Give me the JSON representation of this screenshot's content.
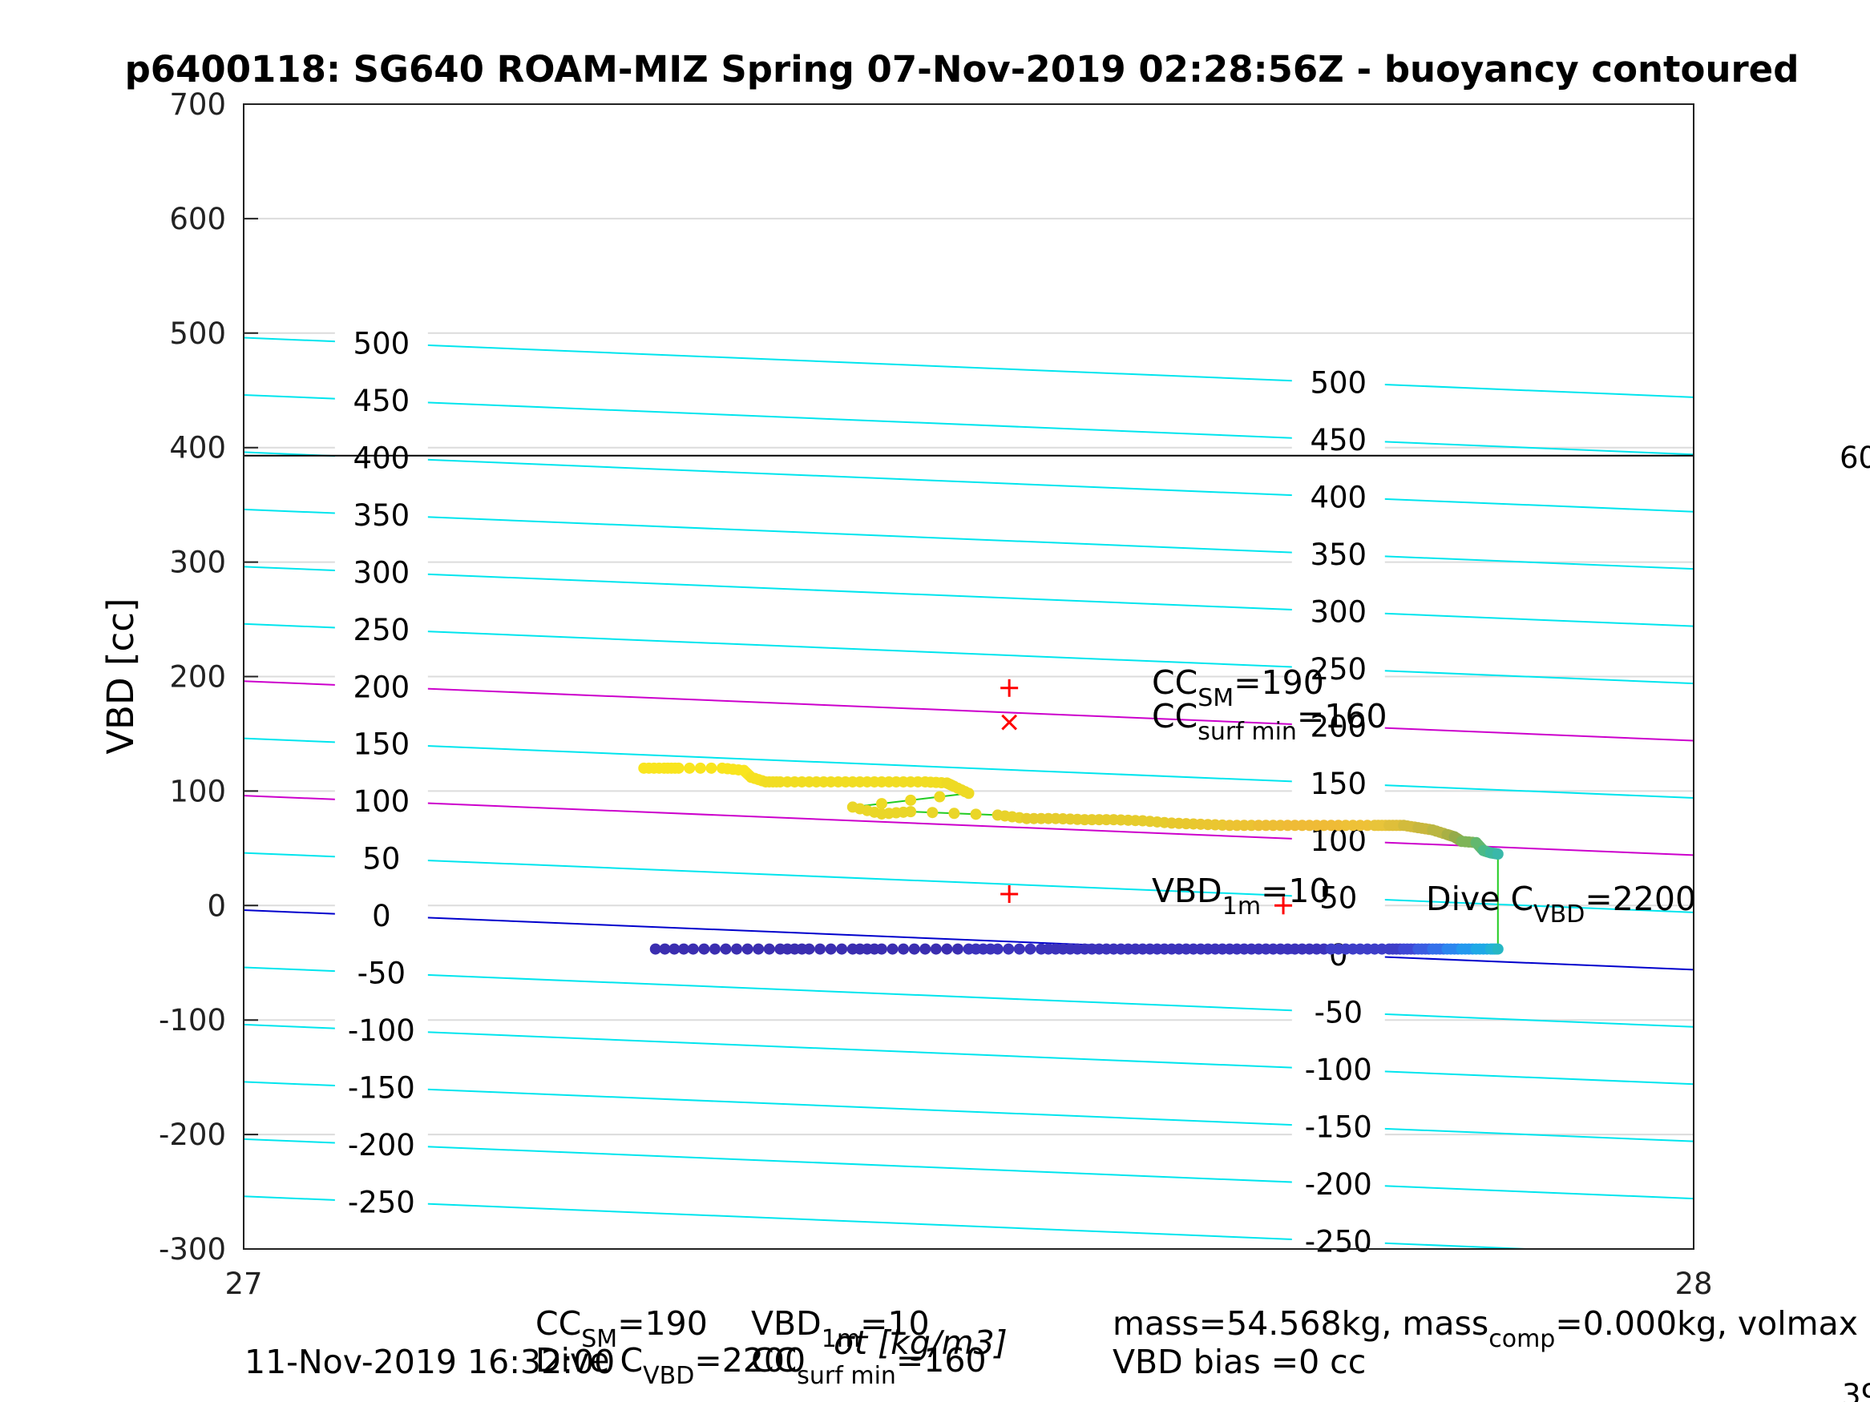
{
  "chart_data": {
    "type": "scatter",
    "title": "p6400118: SG640 ROAM-MIZ Spring 07-Nov-2019 02:28:56Z - buoyancy contoured",
    "xlabel": "σt [kg/m3]",
    "ylabel": "VBD [cc]",
    "xlim": [
      27,
      28
    ],
    "ylim": [
      -300,
      700
    ],
    "xticks": [
      "27",
      "28"
    ],
    "yticks": [
      "-300",
      "-200",
      "-100",
      "0",
      "100",
      "200",
      "300",
      "400",
      "500",
      "600",
      "700"
    ],
    "grid": true,
    "reference_line_vbd": 393,
    "contours": {
      "levels": [
        -250,
        -200,
        -150,
        -100,
        -50,
        0,
        50,
        100,
        150,
        200,
        250,
        300,
        350,
        400,
        450,
        500
      ],
      "left_offset": -4,
      "slope": -52,
      "colors": {
        "default": "#00e5ee",
        "zero": "#0000cc",
        "cc": "#cc00cc"
      },
      "highlight_levels": [
        100,
        200
      ],
      "zero_level": 0
    },
    "series": [
      {
        "x": [
          27.276,
          27.29,
          27.3,
          27.33,
          27.345,
          27.35,
          27.36,
          27.37,
          27.39,
          27.41,
          27.43,
          27.45,
          27.47,
          27.485,
          27.49,
          27.5,
          27.42,
          27.44,
          27.46,
          27.52,
          27.54,
          27.56,
          27.58,
          27.6,
          27.62,
          27.64,
          27.66,
          27.68,
          27.7,
          27.72,
          27.74,
          27.76,
          27.78,
          27.79,
          27.8,
          27.81,
          27.82,
          27.83,
          27.835,
          27.84,
          27.85,
          27.855,
          27.86,
          27.865
        ],
        "y": [
          120,
          120,
          120,
          120,
          118,
          112,
          108,
          108,
          108,
          108,
          108,
          108,
          108,
          107,
          104,
          98,
          86,
          80,
          82,
          79,
          76,
          76,
          75,
          75,
          74,
          72,
          71,
          70,
          70,
          70,
          70,
          70,
          70,
          70,
          70,
          68,
          66,
          62,
          60,
          56,
          55,
          48,
          46,
          45
        ],
        "colors": [
          "#f9e51e",
          "#f9e51e",
          "#f9e51e",
          "#f9e51e",
          "#f9e51e",
          "#f6e120",
          "#f1dd22",
          "#f1dd22",
          "#f1dd22",
          "#f1dd22",
          "#f1dd22",
          "#f1dd22",
          "#f1dd22",
          "#eeda24",
          "#eeda24",
          "#eeda24",
          "#ead628",
          "#ead628",
          "#ead628",
          "#e8d22a",
          "#e6cc2c",
          "#e6cc2c",
          "#e6cc2c",
          "#e6cc2c",
          "#e6cc2c",
          "#e8c82e",
          "#eac630",
          "#ecc332",
          "#edbe34",
          "#efbb36",
          "#efbb36",
          "#eec137",
          "#e8c43a",
          "#dfbf3a",
          "#d2bb3c",
          "#c8b73e",
          "#bab642",
          "#a9b044",
          "#95ab4a",
          "#7eb457",
          "#62b86e",
          "#4aba87",
          "#3db99c",
          "#39b8aa"
        ]
      },
      {
        "x": [
          27.284,
          27.31,
          27.34,
          27.37,
          27.39,
          27.42,
          27.44,
          27.47,
          27.5,
          27.52,
          27.55,
          27.57,
          27.59,
          27.61,
          27.63,
          27.65,
          27.67,
          27.69,
          27.71,
          27.73,
          27.75,
          27.77,
          27.79,
          27.8,
          27.81,
          27.82,
          27.83,
          27.84,
          27.85,
          27.86,
          27.865
        ],
        "y": [
          -38,
          -38,
          -38,
          -38,
          -38,
          -38,
          -38,
          -38,
          -38,
          -38,
          -38,
          -38,
          -38,
          -38,
          -38,
          -38,
          -38,
          -38,
          -38,
          -38,
          -38,
          -38,
          -38,
          -38,
          -38,
          -38,
          -38,
          -38,
          -38,
          -38,
          -38
        ],
        "colors": [
          "#3b2eb0",
          "#3b2eb0",
          "#3b2eb0",
          "#3b2eb0",
          "#3b2eb0",
          "#3b2eb0",
          "#3b2eb0",
          "#3b2eb0",
          "#3c33bb",
          "#3c33bb",
          "#3c33bb",
          "#3c33bb",
          "#3c33bb",
          "#3c33bb",
          "#3c33bb",
          "#3c33bb",
          "#3c33bb",
          "#3c33bb",
          "#3c33bb",
          "#3c33bb",
          "#3e3ec8",
          "#3e3ec8",
          "#3e3ec8",
          "#3f48d6",
          "#3b5de2",
          "#3470ea",
          "#2c86ef",
          "#2499ee",
          "#1fa9e6",
          "#22b3d6",
          "#26b7c4"
        ]
      }
    ],
    "markers": [
      {
        "x": 27.528,
        "y": 190,
        "symbol": "+",
        "color": "#ff0000"
      },
      {
        "x": 27.528,
        "y": 160,
        "symbol": "x",
        "color": "#ff0000"
      },
      {
        "x": 27.528,
        "y": 10,
        "symbol": "+",
        "color": "#ff0000"
      },
      {
        "x": 27.717,
        "y": 0,
        "symbol": "+",
        "color": "#ff0000"
      }
    ],
    "annotations": {
      "cc_sm": {
        "main": "CC",
        "sub": "SM",
        "value": "=190"
      },
      "cc_surf_min": {
        "main": "CC",
        "sub": "surf min",
        "value": "=160"
      },
      "vbd_1m": {
        "main": "VBD",
        "sub": "1m",
        "value": "=10"
      },
      "dive_c_vbd": {
        "main": "Dive C",
        "sub": "VBD",
        "value": "=2200"
      },
      "edge_right_1": "60",
      "edge_right_2": "39"
    },
    "footer": {
      "date": "11-Nov-2019 16:32:00",
      "cc_sm": {
        "main": "CC",
        "sub": "SM",
        "value": "=190"
      },
      "dive_c_vbd": {
        "main": "Dive C",
        "sub": "VBD",
        "value": "=2200"
      },
      "vbd_1m": {
        "main": "VBD",
        "sub": "1m",
        "value": "=10"
      },
      "cc_surf_min": {
        "main": "CC",
        "sub": "surf min",
        "value": "=160"
      },
      "mass_line": "mass=54.568kg, mass",
      "mass_sub": "comp",
      "mass_rest": "=0.000kg, volmax",
      "vbd_bias": "VBD bias =0 cc"
    }
  }
}
